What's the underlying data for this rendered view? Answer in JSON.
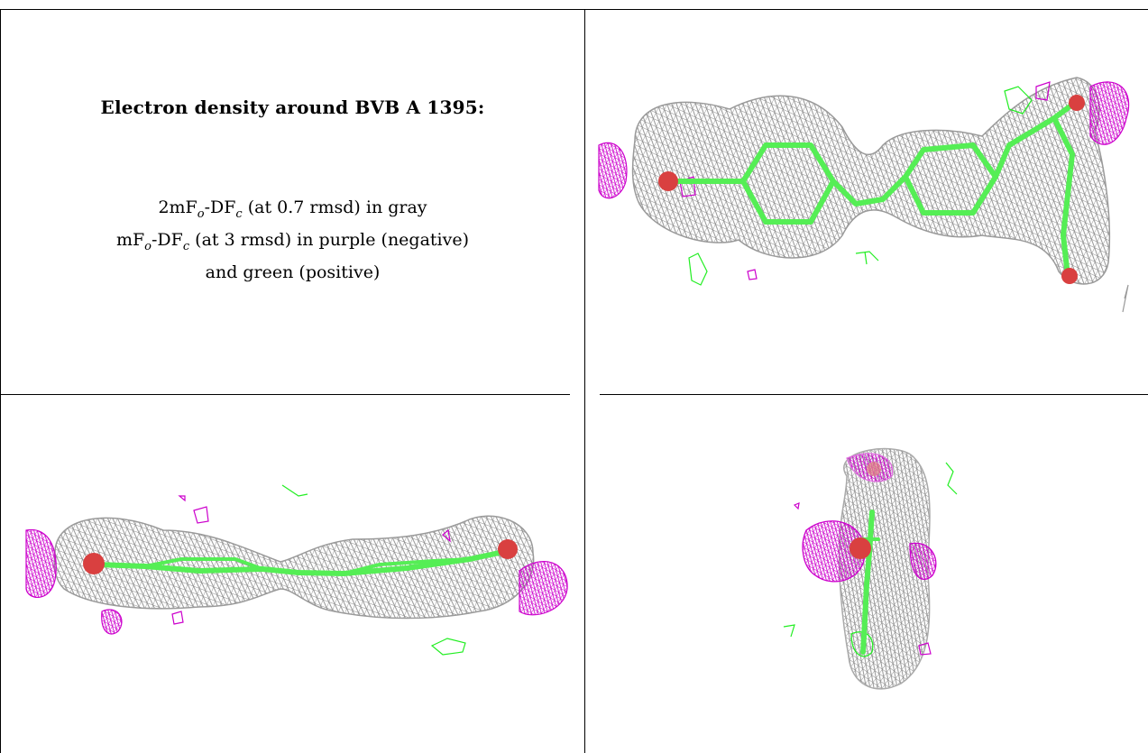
{
  "title": "Electron density around BVB A 1395:",
  "legend": {
    "line1_a": "2mF",
    "line1_sub1": "o",
    "line1_b": "-DF",
    "line1_sub2": "c",
    "line1_c": " (at 0.7 rmsd) in gray",
    "line2_a": "mF",
    "line2_sub1": "o",
    "line2_b": "-DF",
    "line2_sub2": "c",
    "line2_c": " (at 3 rmsd) in purple (negative)",
    "line3": "and green (positive)"
  },
  "colors": {
    "map_2fofc": "#8a8a8a",
    "map_negative": "#cc00cc",
    "map_positive": "#22ee22",
    "ligand_carbon": "#55ee55",
    "ligand_oxygen": "#d94040"
  },
  "panels": [
    "view-1",
    "view-2",
    "view-3"
  ]
}
